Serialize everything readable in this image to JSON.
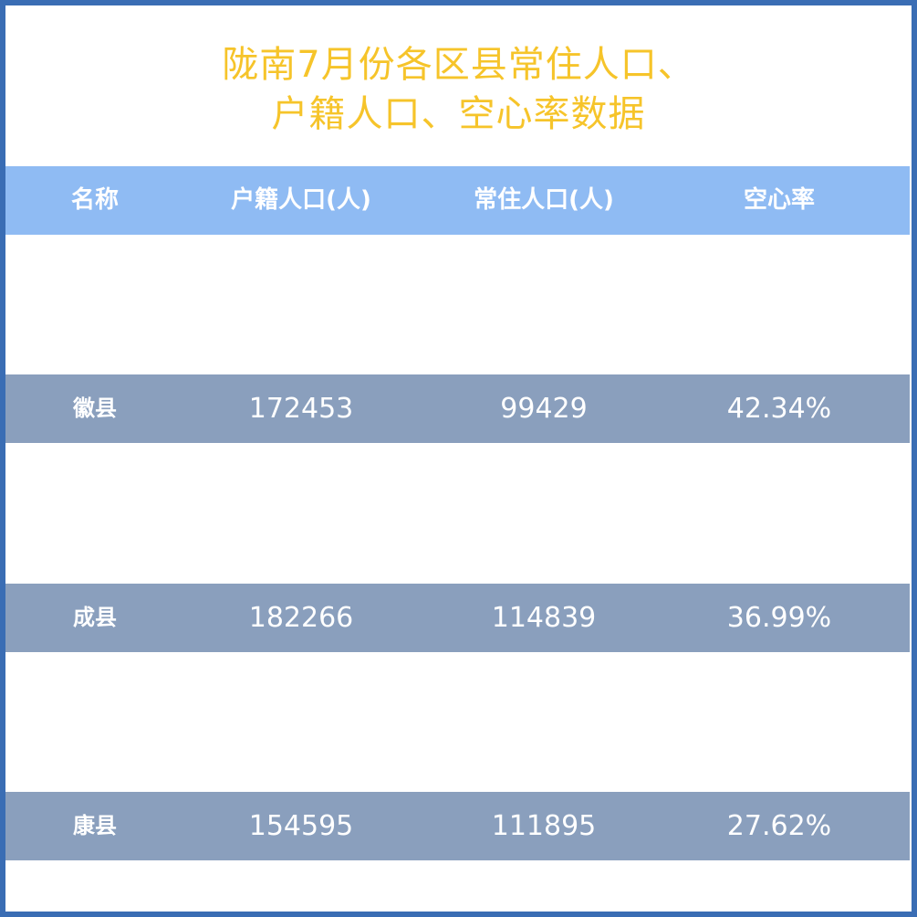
{
  "title": {
    "line1": "陇南7月份各区县常住人口、",
    "line2": "户籍人口、空心率数据"
  },
  "table": {
    "columns": [
      "名称",
      "户籍人口(人)",
      "常住人口(人)",
      "空心率"
    ],
    "rows": [
      {
        "name": "徽县",
        "registered": "172453",
        "resident": "99429",
        "hollow_rate": "42.34%"
      },
      {
        "name": "成县",
        "registered": "182266",
        "resident": "114839",
        "hollow_rate": "36.99%"
      },
      {
        "name": "康县",
        "registered": "154595",
        "resident": "111895",
        "hollow_rate": "27.62%"
      }
    ]
  },
  "colors": {
    "border": "#3a6db4",
    "title": "#f6c42a",
    "header_bg": "#8fbbf3",
    "row_bg": "#8a9fbd",
    "text": "#ffffff"
  }
}
